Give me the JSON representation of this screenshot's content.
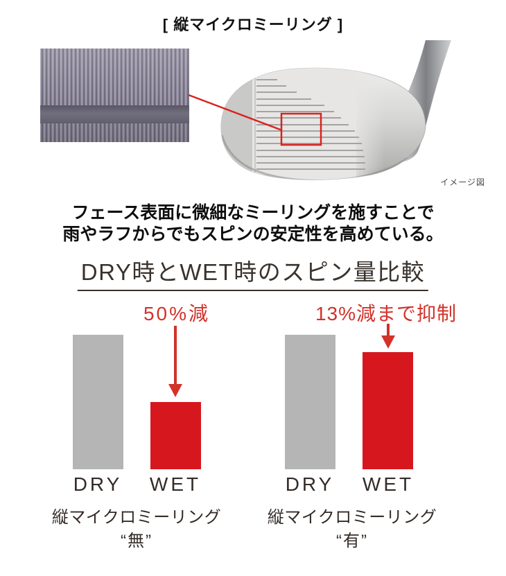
{
  "title": "[ 縦マイクロミーリング ]",
  "hero": {
    "texture_image": "milled-face-texture-closeup",
    "club_image": "wedge-face-front-view",
    "image_note": "イメージ図"
  },
  "description": {
    "line1": "フェース表面に微細なミーリングを施すことで",
    "line2": "雨やラフからでもスピンの安定性を高めている。"
  },
  "chart_data": {
    "type": "bar",
    "title": "DRY時とWET時のスピン量比較",
    "categories": [
      "DRY",
      "WET"
    ],
    "groups": [
      {
        "caption": "縦マイクロミーリング",
        "caption_sub": "“無”",
        "annotation": "50%減",
        "series": [
          {
            "name": "DRY",
            "value": 100
          },
          {
            "name": "WET",
            "value": 50
          }
        ]
      },
      {
        "caption": "縦マイクロミーリング",
        "caption_sub": "“有”",
        "annotation": "13%減まで抑制",
        "series": [
          {
            "name": "DRY",
            "value": 100
          },
          {
            "name": "WET",
            "value": 87
          }
        ]
      }
    ],
    "value_basis": "DRY = 100 (relative spin amount)",
    "colors": {
      "dry_bar": "#b5b5b5",
      "wet_bar": "#d7171e",
      "annotation": "#d23229"
    },
    "grid": false,
    "legend_position": "none"
  },
  "colors": {
    "background": "#ffffff",
    "accent_red": "#d8231f",
    "text_dark": "#39322d",
    "note_gray": "#4a4a4a"
  }
}
